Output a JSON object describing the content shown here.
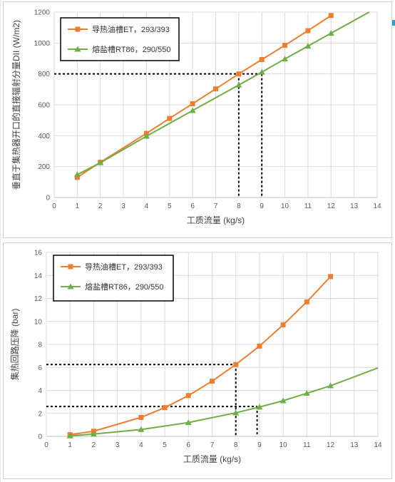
{
  "chart_data": [
    {
      "type": "line",
      "title": "",
      "xlabel": "工质流量 (kg/s)",
      "ylabel": "垂直于集热器开口的直接辐射分量DII (W/m2)",
      "xlim": [
        0,
        14
      ],
      "ylim": [
        0,
        1200
      ],
      "xticks": [
        0,
        1,
        2,
        3,
        4,
        5,
        6,
        7,
        8,
        9,
        10,
        11,
        12,
        13,
        14
      ],
      "yticks": [
        0,
        200,
        400,
        600,
        800,
        1000,
        1200
      ],
      "grid": true,
      "legend": "top-left",
      "series": [
        {
          "name": "导热油槽ET，293/393",
          "color": "#ed7d31",
          "marker": "square",
          "x": [
            1,
            2,
            4,
            5,
            6,
            7,
            8,
            9,
            10,
            11,
            12
          ],
          "y": [
            130,
            228,
            415,
            512,
            607,
            703,
            800,
            893,
            985,
            1080,
            1178
          ]
        },
        {
          "name": "熔盐槽RT86，290/550",
          "color": "#70ad47",
          "marker": "triangle",
          "x": [
            1,
            2,
            4,
            6,
            8,
            9,
            10,
            11,
            12,
            13.65
          ],
          "y": [
            148,
            225,
            397,
            563,
            728,
            812,
            897,
            980,
            1063,
            1200
          ]
        }
      ],
      "guides": {
        "y": 800,
        "x": [
          8,
          9
        ]
      }
    },
    {
      "type": "line",
      "title": "",
      "xlabel": "工质流量 (kg/s)",
      "ylabel": "集热回路压降 (bar)",
      "xlim": [
        0,
        14
      ],
      "ylim": [
        0,
        16
      ],
      "xticks": [
        0,
        1,
        2,
        3,
        4,
        5,
        6,
        7,
        8,
        9,
        10,
        11,
        12,
        13,
        14
      ],
      "yticks": [
        0,
        2,
        4,
        6,
        8,
        10,
        12,
        14,
        16
      ],
      "grid": true,
      "legend": "top-left",
      "series": [
        {
          "name": "导热油槽ET，293/393",
          "color": "#ed7d31",
          "marker": "square",
          "x": [
            1,
            2,
            4,
            5,
            6,
            7,
            8,
            9,
            10,
            11,
            12
          ],
          "y": [
            0.15,
            0.45,
            1.65,
            2.5,
            3.55,
            4.8,
            6.25,
            7.85,
            9.7,
            11.7,
            13.9
          ]
        },
        {
          "name": "熔盐槽RT86，290/550",
          "color": "#70ad47",
          "marker": "triangle",
          "x": [
            1,
            2,
            4,
            6,
            8,
            9,
            10,
            11,
            12,
            14
          ],
          "y": [
            0.05,
            0.2,
            0.6,
            1.2,
            2.05,
            2.55,
            3.1,
            3.75,
            4.4,
            5.95
          ]
        }
      ],
      "guides": {
        "y": [
          6.25,
          2.6
        ],
        "x": [
          8,
          8.9
        ]
      }
    }
  ]
}
